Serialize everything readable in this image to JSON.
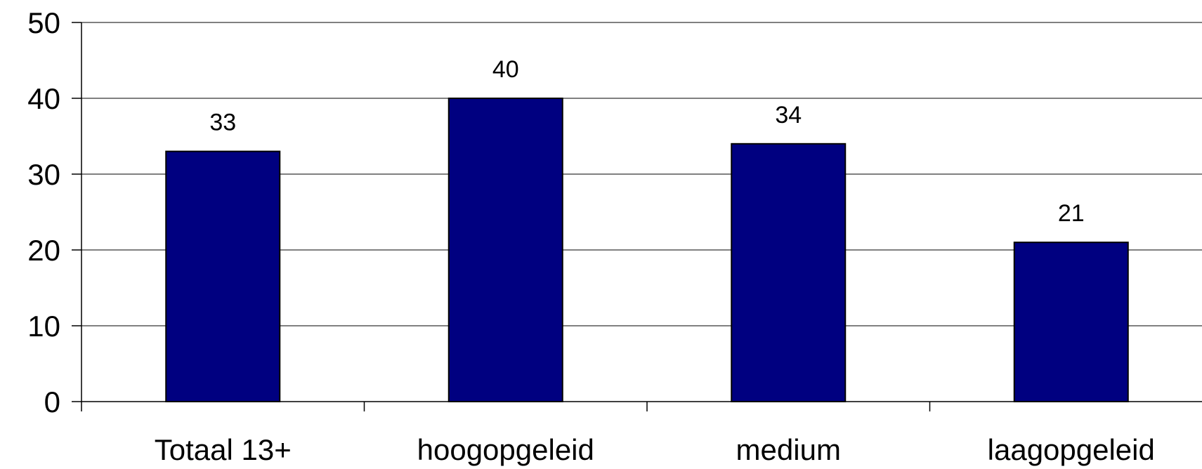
{
  "chart_data": {
    "type": "bar",
    "categories": [
      "Totaal 13+",
      "hoogopgeleid",
      "medium",
      "laagopgeleid"
    ],
    "values": [
      33,
      40,
      34,
      21
    ],
    "value_labels": [
      "33",
      "40",
      "34",
      "21"
    ],
    "y_ticks": [
      "0",
      "10",
      "20",
      "30",
      "40",
      "50"
    ],
    "ylim": [
      0,
      50
    ],
    "grid": true,
    "legend": "none",
    "bar_color": "#000080"
  }
}
